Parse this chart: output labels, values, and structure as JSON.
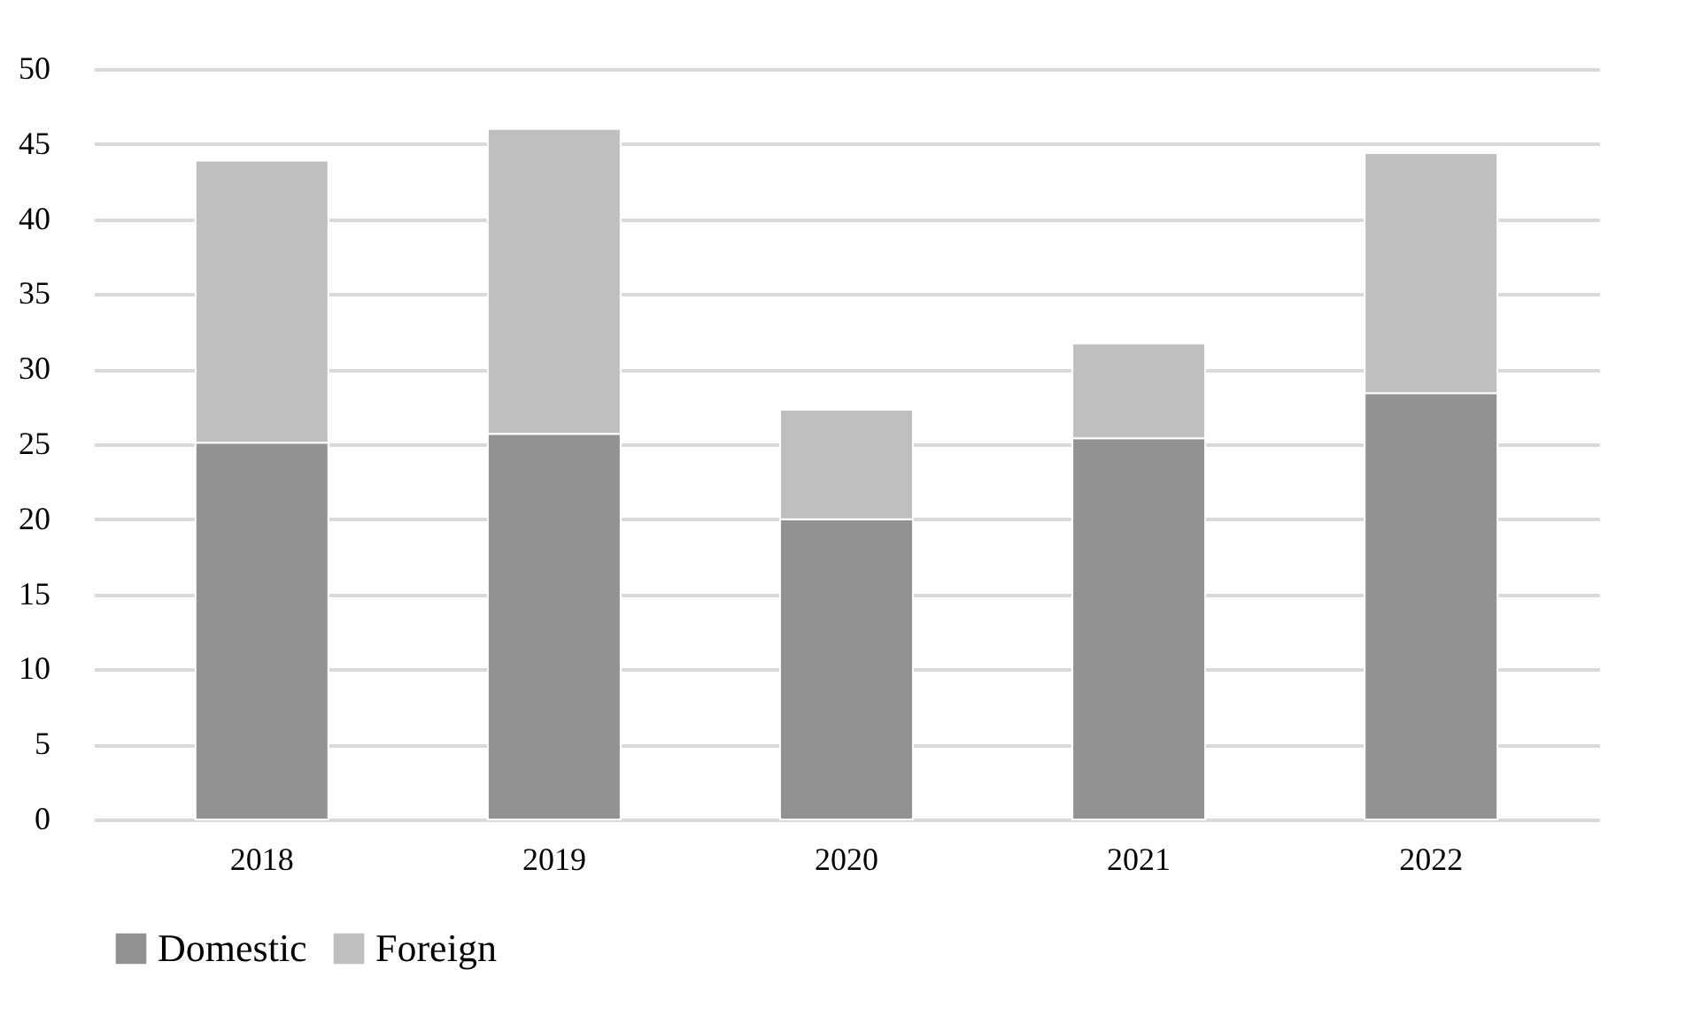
{
  "chart_data": {
    "type": "bar",
    "stacked": true,
    "categories": [
      "2018",
      "2019",
      "2020",
      "2021",
      "2022"
    ],
    "series": [
      {
        "name": "Domestic",
        "color": "#929292",
        "values": [
          25.1,
          25.7,
          20.0,
          25.4,
          28.4
        ]
      },
      {
        "name": "Foreign",
        "color": "#bfbfbf",
        "values": [
          18.8,
          20.3,
          7.3,
          6.3,
          16.0
        ]
      }
    ],
    "ylim": [
      0,
      50
    ],
    "yticks": [
      0,
      5,
      10,
      15,
      20,
      25,
      30,
      35,
      40,
      45,
      50
    ],
    "grid": "y",
    "legend": "bottom"
  }
}
